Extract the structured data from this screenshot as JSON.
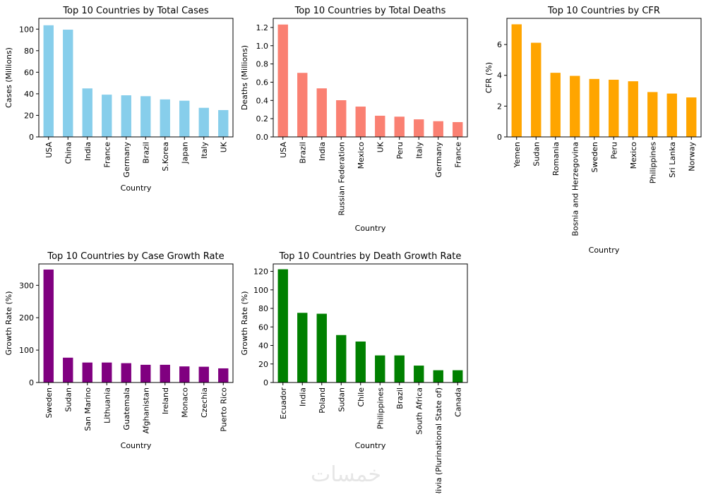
{
  "watermark": "خمسات",
  "chart_data": [
    {
      "type": "bar",
      "title": "Top 10 Countries by Total Cases",
      "xlabel": "Country",
      "ylabel": "Cases (Millions)",
      "color": "#87ceeb",
      "ylim": [
        0,
        110
      ],
      "yticks": [
        0,
        20,
        40,
        60,
        80,
        100
      ],
      "ytick_labels": [
        "0",
        "20",
        "40",
        "60",
        "80",
        "100"
      ],
      "categories": [
        "USA",
        "China",
        "India",
        "France",
        "Germany",
        "Brazil",
        "S.Korea",
        "Japan",
        "Italy",
        "UK"
      ],
      "values": [
        103.4,
        99.3,
        44.8,
        39.0,
        38.4,
        37.6,
        34.6,
        33.4,
        26.8,
        24.7
      ]
    },
    {
      "type": "bar",
      "title": "Top 10 Countries by Total Deaths",
      "xlabel": "Country",
      "ylabel": "Deaths (Millions)",
      "color": "#fa8072",
      "ylim": [
        0,
        1.3
      ],
      "yticks": [
        0,
        0.2,
        0.4,
        0.6,
        0.8,
        1.0,
        1.2
      ],
      "ytick_labels": [
        "0.0",
        "0.2",
        "0.4",
        "0.6",
        "0.8",
        "1.0",
        "1.2"
      ],
      "categories": [
        "USA",
        "Brazil",
        "India",
        "Russian Federation",
        "Mexico",
        "UK",
        "Peru",
        "Italy",
        "Germany",
        "France"
      ],
      "values": [
        1.23,
        0.7,
        0.53,
        0.4,
        0.33,
        0.23,
        0.22,
        0.19,
        0.17,
        0.16
      ]
    },
    {
      "type": "bar",
      "title": "Top 10 Countries by CFR",
      "xlabel": "Country",
      "ylabel": "CFR (%)",
      "color": "#ffa500",
      "ylim": [
        0,
        7.7
      ],
      "yticks": [
        0,
        2,
        4,
        6
      ],
      "ytick_labels": [
        "0",
        "2",
        "4",
        "6"
      ],
      "categories": [
        "Yemen",
        "Sudan",
        "Romania",
        "Bosnia and Herzegovina",
        "Sweden",
        "Peru",
        "Mexico",
        "Philippines",
        "Sri Lanka",
        "Norway"
      ],
      "values": [
        7.3,
        6.1,
        4.15,
        3.95,
        3.75,
        3.7,
        3.6,
        2.9,
        2.8,
        2.55
      ]
    },
    {
      "type": "bar",
      "title": "Top 10 Countries by Case Growth Rate",
      "xlabel": "Country",
      "ylabel": "Growth Rate (%)",
      "color": "#800080",
      "ylim": [
        0,
        366
      ],
      "yticks": [
        0,
        100,
        200,
        300
      ],
      "ytick_labels": [
        "0",
        "100",
        "200",
        "300"
      ],
      "categories": [
        "Sweden",
        "Sudan",
        "San Marino",
        "Lithuania",
        "Guatemala",
        "Afghanistan",
        "Ireland",
        "Monaco",
        "Czechia",
        "Puerto Rico"
      ],
      "values": [
        348,
        76,
        61,
        61,
        59,
        54,
        54,
        49,
        48,
        43
      ]
    },
    {
      "type": "bar",
      "title": "Top 10 Countries by Death Growth Rate",
      "xlabel": "Country",
      "ylabel": "Growth Rate (%)",
      "color": "#008000",
      "ylim": [
        0,
        128
      ],
      "yticks": [
        0,
        20,
        40,
        60,
        80,
        100,
        120
      ],
      "ytick_labels": [
        "0",
        "20",
        "40",
        "60",
        "80",
        "100",
        "120"
      ],
      "categories": [
        "Ecuador",
        "India",
        "Poland",
        "Sudan",
        "Chile",
        "Philippines",
        "Brazil",
        "South Africa",
        "Bolivia (Plurinational State of)",
        "Canada"
      ],
      "values": [
        122,
        75,
        74,
        51,
        44,
        29,
        29,
        18,
        13,
        13
      ]
    }
  ]
}
